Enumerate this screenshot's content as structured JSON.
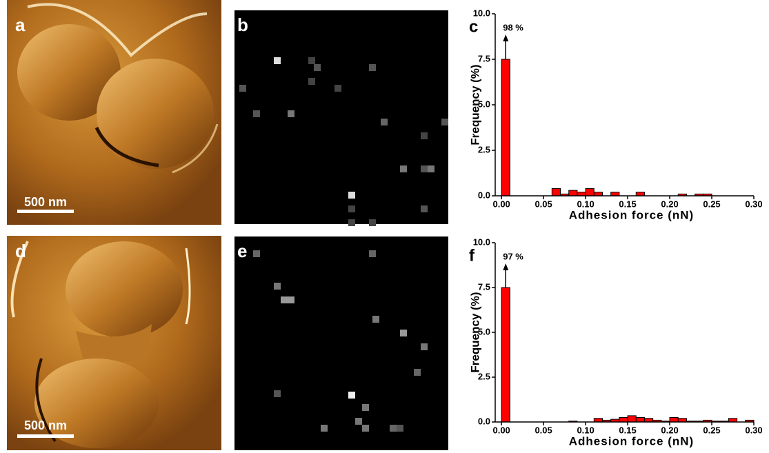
{
  "images": [
    {
      "label": "a",
      "scale_bar": "500 nm"
    },
    {
      "label": "b"
    },
    {
      "label": "d",
      "scale_bar": "500 nm"
    },
    {
      "label": "e"
    }
  ],
  "chart_data": [
    {
      "type": "histogram",
      "label": "c",
      "annotation": "98 %",
      "y_label": "Frequency (%)",
      "x_label": "Adhesion force (nN)",
      "color": "#ff0000",
      "bins": [
        0.0,
        0.01,
        0.02,
        0.03,
        0.04,
        0.05,
        0.06,
        0.07,
        0.08,
        0.09,
        0.1,
        0.11,
        0.12,
        0.13,
        0.14,
        0.15,
        0.16,
        0.17,
        0.18,
        0.19,
        0.2,
        0.21,
        0.22,
        0.23,
        0.24,
        0.25,
        0.26,
        0.27,
        0.28,
        0.29,
        0.3
      ],
      "values": [
        7.5,
        0,
        0,
        0,
        0,
        0,
        0.4,
        0.1,
        0.3,
        0.2,
        0.4,
        0.2,
        0,
        0.2,
        0,
        0,
        0.2,
        0,
        0,
        0,
        0,
        0.1,
        0,
        0.1,
        0.1,
        0,
        0,
        0,
        0,
        0
      ],
      "xlim": [
        -0.0075,
        0.3
      ],
      "ylim": [
        0,
        10
      ],
      "xticks": [
        {
          "value": 0,
          "label": "0.00"
        },
        {
          "value": 0.05,
          "label": "0.05"
        },
        {
          "value": 0.1,
          "label": "0.10"
        },
        {
          "value": 0.15,
          "label": "0.15"
        },
        {
          "value": 0.2,
          "label": "0.20"
        },
        {
          "value": 0.25,
          "label": "0.25"
        },
        {
          "value": 0.3,
          "label": "0.30"
        }
      ],
      "yticks": [
        {
          "value": 0,
          "label": "0.0"
        },
        {
          "value": 2.5,
          "label": "2.5"
        },
        {
          "value": 5,
          "label": "5.0"
        },
        {
          "value": 7.5,
          "label": "7.5"
        },
        {
          "value": 10,
          "label": "10.0"
        }
      ]
    },
    {
      "type": "histogram",
      "label": "f",
      "annotation": "97 %",
      "y_label": "Frequency (%)",
      "x_label": "Adhesion force (nN)",
      "color": "#ff0000",
      "bins": [
        0.0,
        0.01,
        0.02,
        0.03,
        0.04,
        0.05,
        0.06,
        0.07,
        0.08,
        0.09,
        0.1,
        0.11,
        0.12,
        0.13,
        0.14,
        0.15,
        0.16,
        0.17,
        0.18,
        0.19,
        0.2,
        0.21,
        0.22,
        0.23,
        0.24,
        0.25,
        0.26,
        0.27,
        0.28,
        0.29,
        0.3
      ],
      "values": [
        7.5,
        0,
        0,
        0,
        0,
        0,
        0,
        0,
        0.05,
        0,
        0,
        0.2,
        0.1,
        0.15,
        0.25,
        0.35,
        0.25,
        0.2,
        0.1,
        0.05,
        0.25,
        0.2,
        0.05,
        0.05,
        0.1,
        0.05,
        0.05,
        0.2,
        0,
        0.1
      ],
      "xlim": [
        -0.0075,
        0.3
      ],
      "ylim": [
        0,
        10
      ],
      "xticks": [
        {
          "value": 0,
          "label": "0.00"
        },
        {
          "value": 0.05,
          "label": "0.05"
        },
        {
          "value": 0.1,
          "label": "0.10"
        },
        {
          "value": 0.15,
          "label": "0.15"
        },
        {
          "value": 0.2,
          "label": "0.20"
        },
        {
          "value": 0.25,
          "label": "0.25"
        },
        {
          "value": 0.3,
          "label": "0.30"
        }
      ],
      "yticks": [
        {
          "value": 0,
          "label": "0.0"
        },
        {
          "value": 2.5,
          "label": "2.5"
        },
        {
          "value": 5,
          "label": "5.0"
        },
        {
          "value": 7.5,
          "label": "7.5"
        },
        {
          "value": 10,
          "label": "10.0"
        }
      ]
    }
  ]
}
